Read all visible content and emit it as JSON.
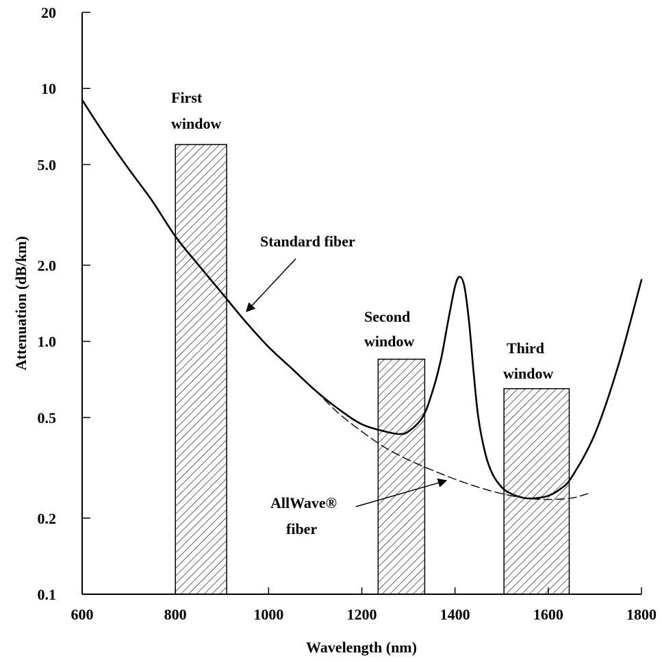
{
  "chart_data": {
    "type": "line",
    "title": "",
    "xlabel": "Wavelength (nm)",
    "ylabel": "Attenuation (dB/km)",
    "xlim": [
      600,
      1800
    ],
    "ylim": [
      0.1,
      20
    ],
    "y_scale": "log",
    "grid": false,
    "x_ticks": [
      600,
      800,
      1000,
      1200,
      1400,
      1600,
      1800
    ],
    "y_ticks": [
      20,
      10,
      5.0,
      2.0,
      1.0,
      0.5,
      0.2,
      0.1
    ],
    "x_tick_labels": [
      "600",
      "800",
      "1000",
      "1200",
      "1400",
      "1600",
      "1800"
    ],
    "y_tick_labels": [
      "20",
      "10",
      "5.0",
      "2.0",
      "1.0",
      "0.5",
      "0.2",
      "0.1"
    ],
    "series": [
      {
        "name": "Standard fiber",
        "style": "solid",
        "x": [
          600,
          650,
          700,
          750,
          800,
          850,
          900,
          950,
          1000,
          1050,
          1100,
          1150,
          1200,
          1250,
          1280,
          1300,
          1330,
          1350,
          1370,
          1385,
          1400,
          1410,
          1420,
          1430,
          1440,
          1450,
          1465,
          1480,
          1500,
          1520,
          1550,
          1575,
          1600,
          1625,
          1650,
          1700,
          1750,
          1800
        ],
        "y": [
          9.0,
          6.5,
          4.8,
          3.6,
          2.6,
          2.0,
          1.55,
          1.2,
          0.95,
          0.78,
          0.64,
          0.54,
          0.47,
          0.44,
          0.43,
          0.44,
          0.5,
          0.62,
          0.85,
          1.2,
          1.65,
          1.8,
          1.65,
          1.2,
          0.75,
          0.5,
          0.36,
          0.3,
          0.265,
          0.25,
          0.24,
          0.24,
          0.245,
          0.26,
          0.29,
          0.43,
          0.8,
          1.75
        ]
      },
      {
        "name": "AllWave® fiber",
        "style": "dashed",
        "x": [
          1100,
          1150,
          1200,
          1250,
          1300,
          1350,
          1400,
          1450,
          1500,
          1550,
          1600,
          1650,
          1685
        ],
        "y": [
          0.64,
          0.52,
          0.44,
          0.38,
          0.34,
          0.31,
          0.285,
          0.265,
          0.25,
          0.24,
          0.237,
          0.24,
          0.25
        ]
      }
    ],
    "windows": [
      {
        "name": "First window",
        "x_range": [
          800,
          910
        ],
        "y_top": 6.0
      },
      {
        "name": "Second window",
        "x_range": [
          1235,
          1335
        ],
        "y_top": 0.85
      },
      {
        "name": "Third window",
        "x_range": [
          1505,
          1645
        ],
        "y_top": 0.65
      }
    ],
    "annotations": [
      {
        "key": "first",
        "lines": [
          "First",
          "window"
        ]
      },
      {
        "key": "second",
        "lines": [
          "Second",
          "window"
        ]
      },
      {
        "key": "third",
        "lines": [
          "Third",
          "window"
        ]
      },
      {
        "key": "standard",
        "lines": [
          "Standard fiber"
        ]
      },
      {
        "key": "allwave",
        "lines": [
          "AllWave®",
          "fiber"
        ]
      }
    ]
  }
}
